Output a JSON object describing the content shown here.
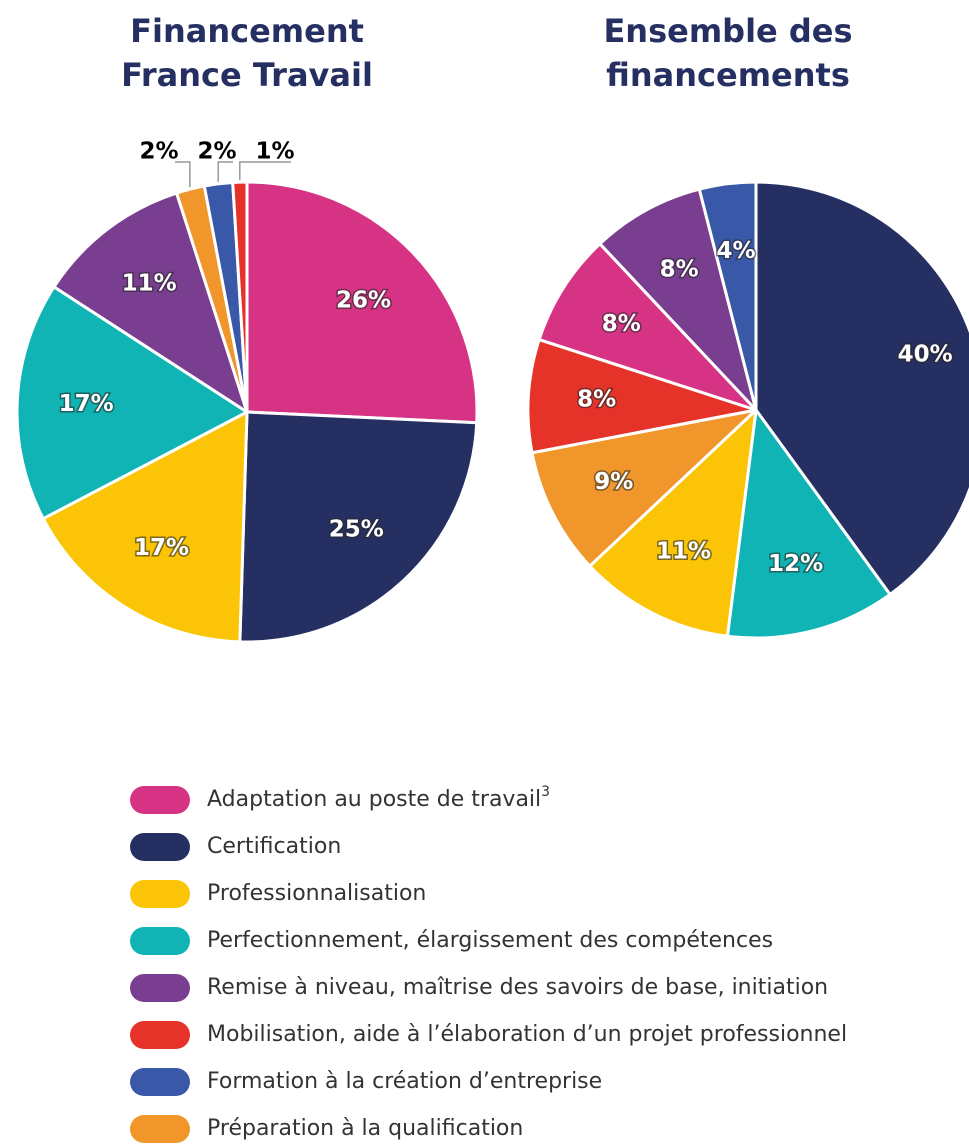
{
  "chart_data": [
    {
      "type": "pie",
      "title": [
        "Financement",
        "France Travail"
      ],
      "categories": [
        "Adaptation au poste de travail",
        "Certification",
        "Professionnalisation",
        "Perfectionnement, élargissement des compétences",
        "Remise à niveau, maîtrise des savoirs de base, initiation",
        "Préparation à la qualification",
        "Formation à la création d’entreprise",
        "Mobilisation, aide à l’élaboration d’un projet professionnel"
      ],
      "values": [
        26,
        25,
        17,
        17,
        11,
        2,
        2,
        1
      ],
      "value_labels": [
        "26%",
        "25%",
        "17%",
        "17%",
        "11%",
        "2%",
        "2%",
        "1%"
      ],
      "colors": [
        "#d63384",
        "#262f62",
        "#fbc406",
        "#10b4b5",
        "#7a3e91",
        "#f0962a",
        "#3a58a8",
        "#e5332a"
      ]
    },
    {
      "type": "pie",
      "title": [
        "Ensemble des",
        "financements"
      ],
      "categories": [
        "Certification",
        "Perfectionnement, élargissement des compétences",
        "Professionnalisation",
        "Préparation à la qualification",
        "Mobilisation, aide à l’élaboration d’un projet professionnel",
        "Adaptation au poste de travail",
        "Remise à niveau, maîtrise des savoirs de base, initiation",
        "Formation à la création d’entreprise"
      ],
      "values": [
        40,
        12,
        11,
        9,
        8,
        8,
        8,
        4
      ],
      "value_labels": [
        "40%",
        "12%",
        "11%",
        "9%",
        "8%",
        "8%",
        "8%",
        "4%"
      ],
      "colors": [
        "#262f62",
        "#10b4b5",
        "#fbc406",
        "#f0962a",
        "#e5332a",
        "#d63384",
        "#7a3e91",
        "#3a58a8"
      ]
    }
  ],
  "legend": {
    "items": [
      {
        "name": "Adaptation au poste de travail",
        "footnote": "3",
        "color": "#d63384"
      },
      {
        "name": "Certification",
        "color": "#262f62"
      },
      {
        "name": "Professionnalisation",
        "color": "#fbc406"
      },
      {
        "name": "Perfectionnement, élargissement des compétences",
        "color": "#10b4b5"
      },
      {
        "name": "Remise à niveau, maîtrise des savoirs de base, initiation",
        "color": "#7a3e91"
      },
      {
        "name": "Mobilisation, aide à l’élaboration d’un projet professionnel",
        "color": "#e5332a"
      },
      {
        "name": "Formation à la création d’entreprise",
        "color": "#3a58a8"
      },
      {
        "name": "Préparation à la qualification",
        "color": "#f0962a"
      }
    ]
  }
}
